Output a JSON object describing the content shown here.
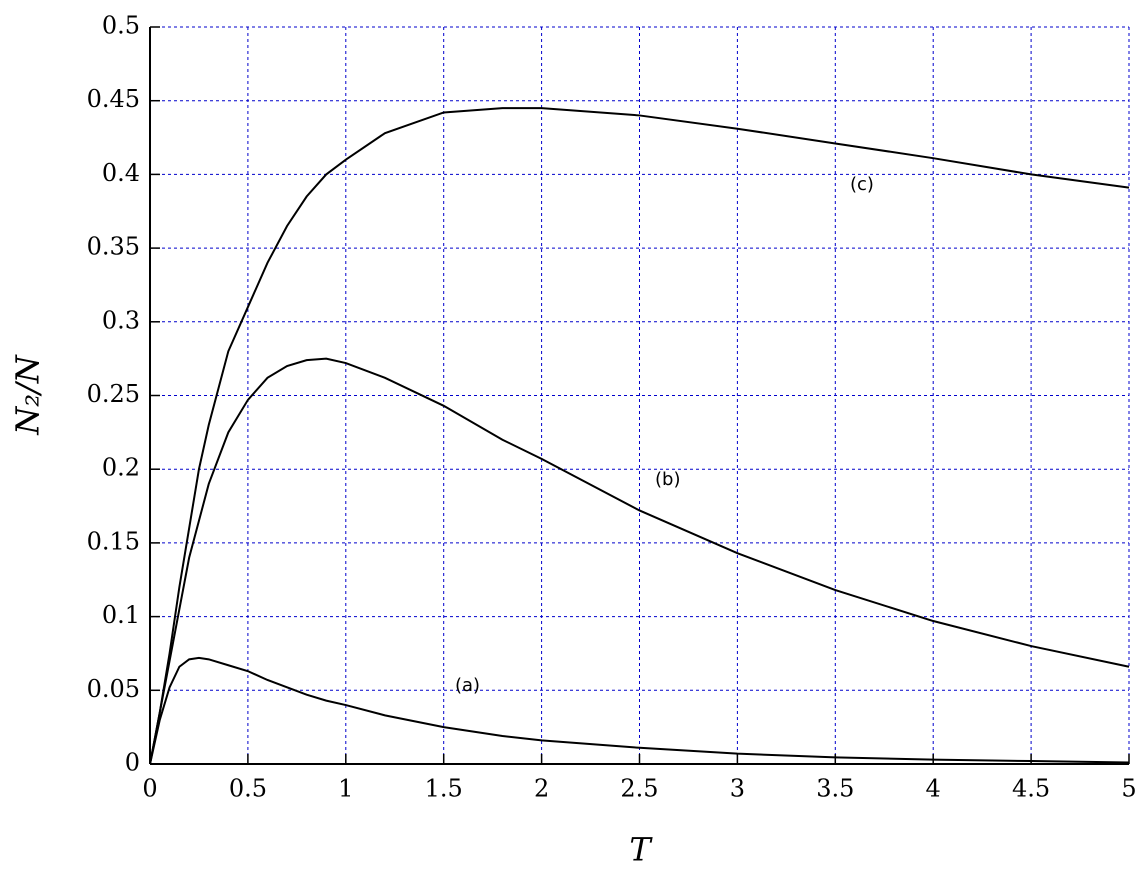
{
  "chart_data": {
    "type": "line",
    "xlabel": "T",
    "ylabel": "N₂/N",
    "x": [
      0,
      0.05,
      0.1,
      0.15,
      0.2,
      0.25,
      0.3,
      0.4,
      0.5,
      0.6,
      0.7,
      0.8,
      0.9,
      1,
      1.2,
      1.5,
      1.8,
      2,
      2.5,
      3,
      3.5,
      4,
      4.5,
      5
    ],
    "series": [
      {
        "color": "#000000",
        "values": [
          0,
          0.03,
          0.052,
          0.066,
          0.071,
          0.072,
          0.071,
          0.067,
          0.063,
          0.057,
          0.052,
          0.047,
          0.043,
          0.04,
          0.033,
          0.025,
          0.019,
          0.016,
          0.011,
          0.007,
          0.0045,
          0.003,
          0.002,
          0.001
        ]
      },
      {
        "color": "#000000",
        "values": [
          0,
          0.035,
          0.07,
          0.105,
          0.14,
          0.165,
          0.19,
          0.225,
          0.247,
          0.262,
          0.27,
          0.274,
          0.275,
          0.272,
          0.262,
          0.243,
          0.22,
          0.207,
          0.172,
          0.143,
          0.118,
          0.097,
          0.08,
          0.066
        ]
      },
      {
        "color": "#000000",
        "values": [
          0,
          0.035,
          0.075,
          0.12,
          0.16,
          0.2,
          0.23,
          0.28,
          0.31,
          0.34,
          0.365,
          0.385,
          0.4,
          0.41,
          0.428,
          0.442,
          0.445,
          0.445,
          0.44,
          0.431,
          0.421,
          0.411,
          0.4,
          0.391
        ]
      }
    ],
    "annotations": [
      "(a)",
      "(b)",
      "(c)"
    ],
    "xlim": [
      0,
      5
    ],
    "xticks": [
      0,
      0.5,
      1,
      1.5,
      2,
      2.5,
      3,
      3.5,
      4,
      4.5,
      5
    ],
    "ylim": [
      0,
      0.5
    ],
    "yticks": [
      0,
      0.05,
      0.1,
      0.15,
      0.2,
      0.25,
      0.3,
      0.35,
      0.4,
      0.45,
      0.5
    ],
    "grid": true,
    "grid_color": "#0000cc"
  }
}
